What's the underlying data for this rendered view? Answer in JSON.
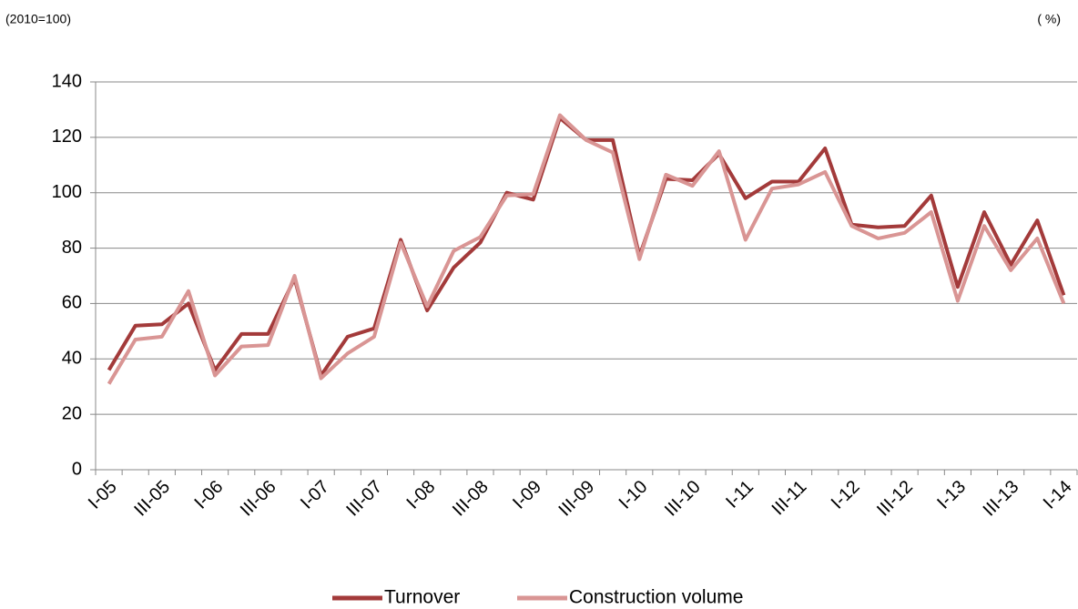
{
  "chart_data": {
    "type": "line",
    "left_note": "(2010=100)",
    "right_note": "( %)",
    "categories": [
      "I-05",
      null,
      "III-05",
      null,
      "I-06",
      null,
      "III-06",
      null,
      "I-07",
      null,
      "III-07",
      null,
      "I-08",
      null,
      "III-08",
      null,
      "I-09",
      null,
      "III-09",
      null,
      "I-10",
      null,
      "III-10",
      null,
      "I-11",
      null,
      "III-11",
      null,
      "I-12",
      null,
      "III-12",
      null,
      "I-13",
      null,
      "III-13",
      null,
      "I-14"
    ],
    "series": [
      {
        "name": "Turnover",
        "color": "#a33a3a",
        "values": [
          36,
          52,
          52.5,
          60,
          36,
          49,
          49,
          69,
          34,
          48,
          51,
          83,
          57.5,
          73,
          82,
          100,
          97.5,
          127,
          119,
          119,
          77,
          105,
          104.5,
          114,
          98,
          104,
          104,
          116,
          88.5,
          87.5,
          88,
          99,
          66,
          93,
          74,
          90,
          63
        ]
      },
      {
        "name": "Construction volume",
        "color": "#d99594",
        "values": [
          31,
          47,
          48,
          64.5,
          34,
          44.5,
          45,
          70,
          33,
          42,
          48,
          82,
          59,
          79,
          84,
          99,
          99.5,
          128,
          119,
          114.5,
          76,
          106.5,
          102.5,
          115,
          83,
          101.5,
          103,
          107.5,
          88,
          83.5,
          85.5,
          93,
          61,
          88,
          72,
          83.5,
          60
        ]
      }
    ],
    "ylim": [
      0,
      140
    ],
    "yticks": [
      0,
      20,
      40,
      60,
      80,
      100,
      120,
      140
    ],
    "grid": true,
    "legend": "bottom"
  }
}
